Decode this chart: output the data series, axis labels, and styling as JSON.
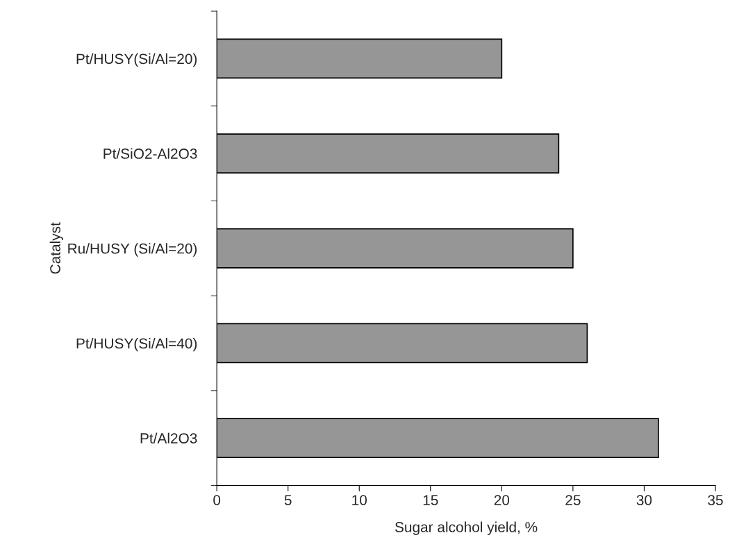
{
  "chart_data": {
    "type": "bar",
    "orientation": "horizontal",
    "xlabel": "Sugar alcohol yield, %",
    "ylabel": "Catalyst",
    "categories": [
      "Pt/HUSY(Si/Al=20)",
      "Pt/SiO2-Al2O3",
      "Ru/HUSY (Si/Al=20)",
      "Pt/HUSY(Si/Al=40)",
      "Pt/Al2O3"
    ],
    "values": [
      20,
      24,
      25,
      26,
      31
    ],
    "color": "#969696",
    "xlim": [
      0,
      35
    ],
    "xticks": [
      0,
      5,
      10,
      15,
      20,
      25,
      30,
      35
    ],
    "grid": false,
    "legend": false
  }
}
